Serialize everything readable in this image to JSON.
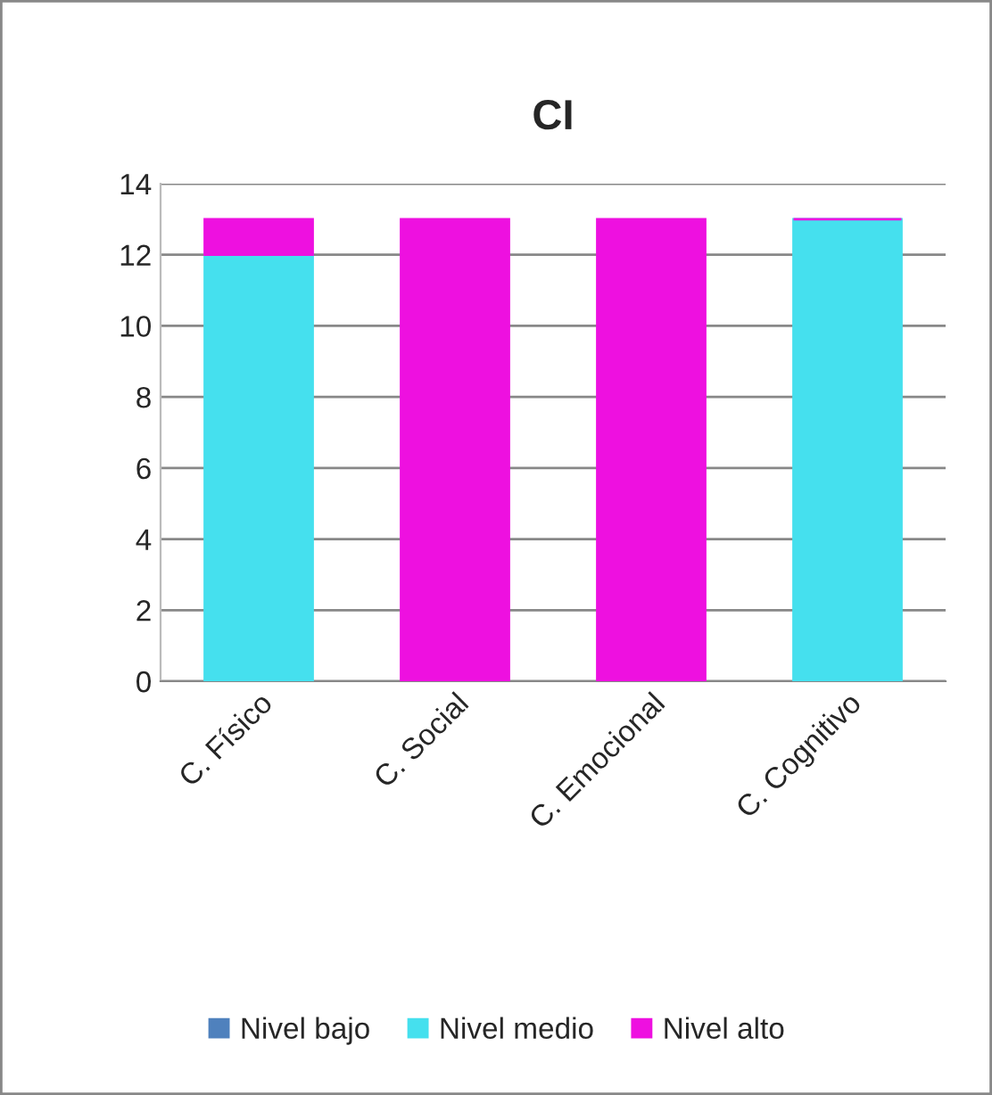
{
  "chart_data": {
    "type": "bar",
    "title": "CI",
    "stacked": true,
    "categories": [
      "C. Físico",
      "C. Social",
      "C. Emocional",
      "C. Cognitivo"
    ],
    "series": [
      {
        "name": "Nivel bajo",
        "color": "#4f81bd",
        "values": [
          0,
          0,
          0,
          0
        ]
      },
      {
        "name": "Nivel medio",
        "color": "#45e0ee",
        "values": [
          12,
          0,
          0,
          13
        ]
      },
      {
        "name": "Nivel alto",
        "color": "#ee10e0",
        "values": [
          1,
          13,
          13,
          0
        ]
      }
    ],
    "ylim": [
      0,
      14
    ],
    "yticks": [
      0,
      2,
      4,
      6,
      8,
      10,
      12,
      14
    ],
    "grid": "y",
    "legend": "bottom"
  }
}
